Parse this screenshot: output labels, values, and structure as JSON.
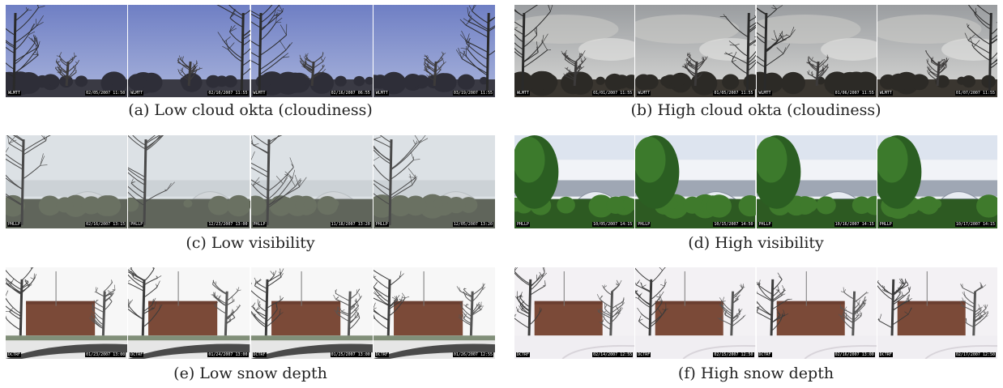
{
  "panels": [
    {
      "label": "(a)",
      "caption": "Low cloud okta (cloudiness)",
      "scene": "sky-blue",
      "frames": [
        {
          "station": "WLMTT",
          "date": "02/05/2007 11:50"
        },
        {
          "station": "WLMTT",
          "date": "02/10/2007 11:55"
        },
        {
          "station": "WLMTT",
          "date": "02/16/2007 06:55"
        },
        {
          "station": "WLMTT",
          "date": "03/19/2007 11:55"
        }
      ]
    },
    {
      "label": "(b)",
      "caption": "High cloud okta (cloudiness)",
      "scene": "sky-grey",
      "frames": [
        {
          "station": "WLMTT",
          "date": "01/01/2007 11:55"
        },
        {
          "station": "WLMTT",
          "date": "01/05/2007 11:55"
        },
        {
          "station": "WLMTT",
          "date": "01/06/2007 11:55"
        },
        {
          "station": "WLMTT",
          "date": "01/07/2007 11:55"
        }
      ]
    },
    {
      "label": "(c)",
      "caption": "Low visibility",
      "scene": "hazy",
      "frames": [
        {
          "station": "PHLLP",
          "date": "02/16/2007 13:15"
        },
        {
          "station": "PHLLP",
          "date": "12/23/2007 13:00"
        },
        {
          "station": "PHLLP",
          "date": "11/18/2007 13:20"
        },
        {
          "station": "PHLLP",
          "date": "12/05/2007 13:20"
        }
      ]
    },
    {
      "label": "(d)",
      "caption": "High visibility",
      "scene": "clear",
      "frames": [
        {
          "station": "PHLLP",
          "date": "10/05/2007 14:15"
        },
        {
          "station": "PHLLP",
          "date": "10/15/2007 14:50"
        },
        {
          "station": "PHLLP",
          "date": "10/16/2007 14:15"
        },
        {
          "station": "PHLLP",
          "date": "10/17/2007 14:15"
        }
      ]
    },
    {
      "label": "(e)",
      "caption": "Low snow depth",
      "scene": "snow-low",
      "frames": [
        {
          "station": "DCTRF",
          "date": "01/23/2007 13:00"
        },
        {
          "station": "DCTRF",
          "date": "01/24/2007 13:00"
        },
        {
          "station": "DCTRF",
          "date": "01/25/2007 13:00"
        },
        {
          "station": "DCTRF",
          "date": "01/26/2007 12:55"
        }
      ]
    },
    {
      "label": "(f)",
      "caption": "High snow depth",
      "scene": "snow-high",
      "frames": [
        {
          "station": "DCTRF",
          "date": "02/14/2007 12:55"
        },
        {
          "station": "DCTRF",
          "date": "02/15/2007 12:50"
        },
        {
          "station": "DCTRF",
          "date": "02/16/2007 13:00"
        },
        {
          "station": "DCTRF",
          "date": "02/17/2007 12:50"
        }
      ]
    }
  ]
}
